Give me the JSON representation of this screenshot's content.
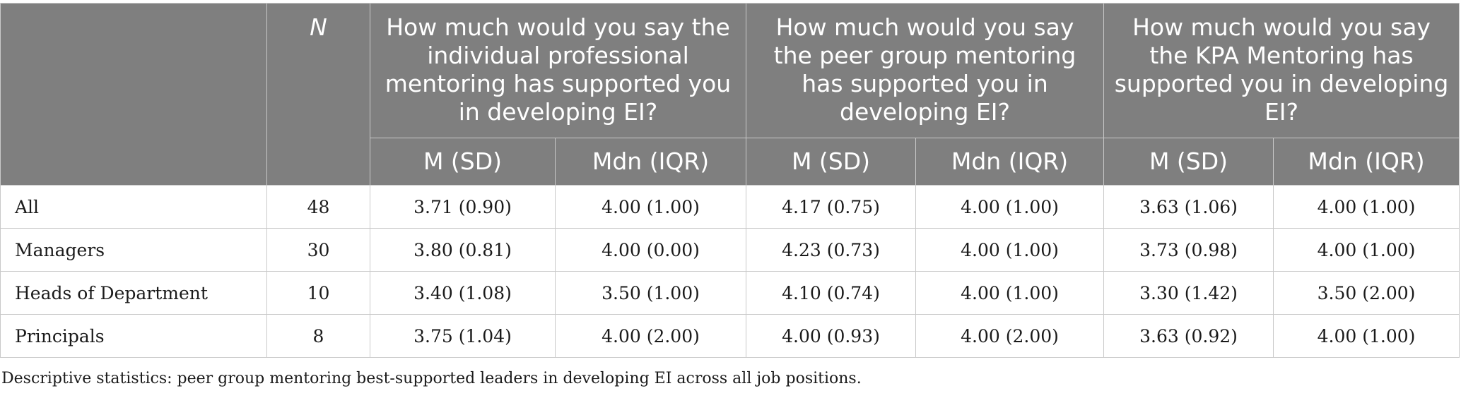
{
  "table": {
    "header": {
      "n_label": "N",
      "questions": [
        "How much would you say the individual professional mentoring has supported you in developing EI?",
        "How much would you say the peer group mentoring has supported you in developing EI?",
        "How much would you say the KPA Mentoring has supported you in developing EI?"
      ],
      "sub_headers": [
        "M (SD)",
        "Mdn (IQR)",
        "M (SD)",
        "Mdn (IQR)",
        "M (SD)",
        "Mdn (IQR)"
      ]
    },
    "rows": [
      {
        "label": "All",
        "n": "48",
        "values": [
          "3.71 (0.90)",
          "4.00 (1.00)",
          "4.17 (0.75)",
          "4.00 (1.00)",
          "3.63 (1.06)",
          "4.00 (1.00)"
        ]
      },
      {
        "label": "Managers",
        "n": "30",
        "values": [
          "3.80 (0.81)",
          "4.00 (0.00)",
          "4.23 (0.73)",
          "4.00 (1.00)",
          "3.73 (0.98)",
          "4.00 (1.00)"
        ]
      },
      {
        "label": "Heads of Department",
        "n": "10",
        "values": [
          "3.40 (1.08)",
          "3.50 (1.00)",
          "4.10 (0.74)",
          "4.00 (1.00)",
          "3.30 (1.42)",
          "3.50 (2.00)"
        ]
      },
      {
        "label": "Principals",
        "n": "8",
        "values": [
          "3.75 (1.04)",
          "4.00 (2.00)",
          "4.00 (0.93)",
          "4.00 (2.00)",
          "3.63 (0.92)",
          "4.00 (1.00)"
        ]
      }
    ]
  },
  "caption": "Descriptive statistics: peer group mentoring best-supported leaders in developing EI across all job positions.",
  "colors": {
    "header_bg": "#7f7f7f",
    "header_text": "#ffffff",
    "border": "#c9c9c9"
  }
}
